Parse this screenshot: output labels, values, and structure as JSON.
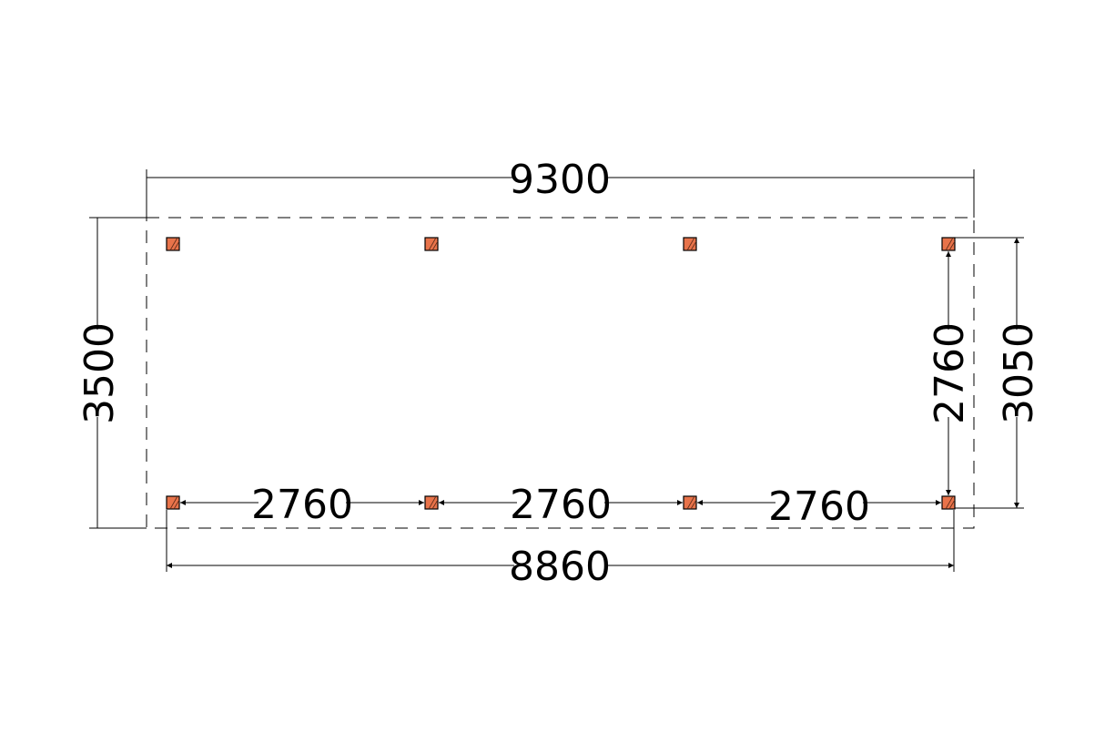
{
  "drawing": {
    "overall_width": "9300",
    "overall_depth": "3500",
    "post_depth_outer": "3050",
    "post_depth_center": "2760",
    "post_spacings": [
      "2760",
      "2760",
      "2760"
    ],
    "post_span_total": "8860",
    "post_color": "#e8734a",
    "post_count": 8
  }
}
